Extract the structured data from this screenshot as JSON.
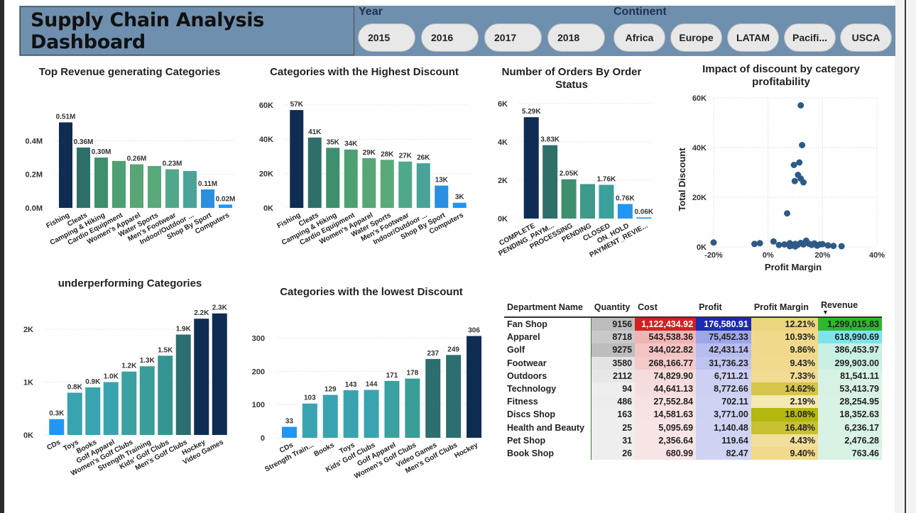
{
  "dashboard": {
    "title": "Supply Chain Analysis Dashboard"
  },
  "slicers": {
    "year_label": "Year",
    "years": [
      "2015",
      "2016",
      "2017",
      "2018"
    ],
    "continent_label": "Continent",
    "continents": [
      "Africa",
      "Europe",
      "LATAM",
      "Pacifi...",
      "USCA"
    ]
  },
  "chart_data": [
    {
      "id": "top_revenue",
      "type": "bar",
      "title": "Top Revenue generating Categories",
      "categories": [
        "Fishing",
        "Cleats",
        "Camping & Hiking",
        "Cardio Equipment",
        "Women's Apparel",
        "Water Sports",
        "Men's Footwear",
        "Indoor/Outdoor ...",
        "Shop By Sport",
        "Computers"
      ],
      "values": [
        0.51,
        0.36,
        0.3,
        0.28,
        0.26,
        0.25,
        0.23,
        0.22,
        0.11,
        0.02
      ],
      "labels": [
        "0.51M",
        "0.36M",
        "0.30M",
        "",
        "0.26M",
        "",
        "0.23M",
        "",
        "0.11M",
        "0.02M"
      ],
      "yticks": [
        "0.0M",
        "0.2M",
        "0.4M"
      ],
      "ytick_values": [
        0,
        0.2,
        0.4
      ],
      "ylim": [
        0,
        0.55
      ],
      "colors": [
        "#0f2d52",
        "#2f6f6a",
        "#3e8f6e",
        "#4ea072",
        "#58a576",
        "#5aa97a",
        "#50a88a",
        "#49a398",
        "#2a8fe0",
        "#2196f3"
      ]
    },
    {
      "id": "highest_discount",
      "type": "bar",
      "title": "Categories with the Highest Discount",
      "categories": [
        "Fishing",
        "Cleats",
        "Camping & Hiking",
        "Cardio Equipment",
        "Women's Apparel",
        "Water Sports",
        "Men's Footwear",
        "Indoor/Outdoor ...",
        "Shop By Sport",
        "Computers"
      ],
      "values": [
        57,
        41,
        35,
        34,
        29,
        28,
        27,
        26,
        13,
        3
      ],
      "labels": [
        "57K",
        "41K",
        "35K",
        "34K",
        "29K",
        "28K",
        "27K",
        "26K",
        "13K",
        "3K"
      ],
      "yticks": [
        "0K",
        "20K",
        "40K",
        "60K"
      ],
      "ytick_values": [
        0,
        20,
        40,
        60
      ],
      "ylim": [
        0,
        62
      ],
      "colors": [
        "#0f2d52",
        "#2f6f6a",
        "#3e8f6e",
        "#4ea072",
        "#58a576",
        "#5aa97a",
        "#50a88a",
        "#49a398",
        "#2a8fe0",
        "#2196f3"
      ]
    },
    {
      "id": "orders_by_status",
      "type": "bar",
      "title": "Number of Orders By Order Status",
      "categories": [
        "COMPLETE",
        "PENDING_PAYM...",
        "PROCESSING",
        "PENDING",
        "CLOSED",
        "ON_HOLD",
        "PAYMENT_REVIE..."
      ],
      "values": [
        5.29,
        3.83,
        2.05,
        1.8,
        1.76,
        0.76,
        0.06
      ],
      "labels": [
        "5.29K",
        "3.83K",
        "2.05K",
        "",
        "1.76K",
        "0.76K",
        "0.06K"
      ],
      "yticks": [
        "0K",
        "2K",
        "4K",
        "6K"
      ],
      "ytick_values": [
        0,
        2,
        4,
        6
      ],
      "ylim": [
        0,
        6
      ],
      "colors": [
        "#0f2d52",
        "#2f6f6a",
        "#3e8f6e",
        "#3f9a8a",
        "#3aa09a",
        "#2196f3",
        "#2196f3"
      ]
    },
    {
      "id": "underperforming",
      "type": "bar",
      "title": "underperforming Categories",
      "categories": [
        "CDs",
        "Toys",
        "Books",
        "Golf Apparel",
        "Women's Golf Clubs",
        "Strength Training",
        "Kids' Golf Clubs",
        "Men's Golf Clubs",
        "Hockey",
        "Video Games"
      ],
      "values": [
        0.3,
        0.8,
        0.9,
        1.0,
        1.2,
        1.3,
        1.5,
        1.9,
        2.2,
        2.3
      ],
      "labels": [
        "0.3K",
        "0.8K",
        "0.9K",
        "1.0K",
        "1.2K",
        "1.3K",
        "1.5K",
        "1.9K",
        "2.2K",
        "2.3K"
      ],
      "yticks": [
        "0K",
        "1K",
        "2K"
      ],
      "ytick_values": [
        0,
        1,
        2
      ],
      "ylim": [
        0,
        2.35
      ],
      "colors": [
        "#2196f3",
        "#3aa3b0",
        "#3aa3b0",
        "#3aa3b0",
        "#3aa0a0",
        "#3a9d98",
        "#359590",
        "#2d6e70",
        "#0f2d52",
        "#0f2d52"
      ]
    },
    {
      "id": "lowest_discount",
      "type": "bar",
      "title": "Categories with the lowest Discount",
      "categories": [
        "CDs",
        "Strength Train...",
        "Books",
        "Toys",
        "Kids' Golf Clubs",
        "Golf Apparel",
        "Women's Golf Clubs",
        "Video Games",
        "Men's Golf Clubs",
        "Hockey"
      ],
      "values": [
        33,
        103,
        129,
        143,
        144,
        171,
        178,
        237,
        249,
        306
      ],
      "labels": [
        "33",
        "103",
        "129",
        "143",
        "144",
        "171",
        "178",
        "237",
        "249",
        "306"
      ],
      "yticks": [
        "0",
        "100",
        "200",
        "300"
      ],
      "ytick_values": [
        0,
        100,
        200,
        300
      ],
      "ylim": [
        0,
        320
      ],
      "colors": [
        "#2196f3",
        "#3aa3b0",
        "#3aa3b0",
        "#3aa3b0",
        "#3aa3b0",
        "#3aa0a0",
        "#3a9d98",
        "#2d6e70",
        "#2d6e70",
        "#0f2d52"
      ]
    },
    {
      "id": "discount_vs_margin",
      "type": "scatter",
      "title": "Impact of discount by category profitability",
      "xlabel": "Profit Margin",
      "ylabel": "Total Discount",
      "xticks": [
        "-20%",
        "0%",
        "20%",
        "40%"
      ],
      "xtick_values": [
        -20,
        0,
        20,
        40
      ],
      "yticks": [
        "0K",
        "20K",
        "40K",
        "60K"
      ],
      "ytick_values": [
        0,
        20,
        40,
        60
      ],
      "xlim": [
        -20,
        40
      ],
      "ylim": [
        0,
        60
      ],
      "color": "#2e5a88",
      "points": [
        [
          12,
          57
        ],
        [
          12.5,
          41
        ],
        [
          11.5,
          34
        ],
        [
          9.5,
          33
        ],
        [
          11,
          29
        ],
        [
          12,
          27.5
        ],
        [
          9.8,
          26.5
        ],
        [
          13,
          26
        ],
        [
          7,
          13.5
        ],
        [
          -21,
          1.8
        ],
        [
          -5,
          1.2
        ],
        [
          -3,
          1.5
        ],
        [
          2,
          2.2
        ],
        [
          4,
          0.8
        ],
        [
          6,
          1.0
        ],
        [
          8,
          1.5
        ],
        [
          9,
          0.6
        ],
        [
          10,
          1.2
        ],
        [
          11,
          0.9
        ],
        [
          12,
          1.6
        ],
        [
          13,
          1.0
        ],
        [
          14,
          2.5
        ],
        [
          15,
          1.3
        ],
        [
          16,
          0.8
        ],
        [
          17,
          1.4
        ],
        [
          18,
          0.5
        ],
        [
          19,
          1.0
        ],
        [
          20,
          1.1
        ],
        [
          22,
          0.6
        ],
        [
          24,
          0.4
        ],
        [
          27,
          0.3
        ],
        [
          8,
          0.3
        ],
        [
          10,
          0.2
        ]
      ]
    }
  ],
  "table": {
    "columns": [
      "Department Name",
      "Quantity",
      "Cost",
      "Profit",
      "Profit Margin",
      "Revenue"
    ],
    "rows": [
      [
        "Fan Shop",
        "9156",
        "1,122,434.92",
        "176,580.91",
        "12.21%",
        "1,299,015.83"
      ],
      [
        "Apparel",
        "8718",
        "543,538.36",
        "75,452.33",
        "10.93%",
        "618,990.69"
      ],
      [
        "Golf",
        "9275",
        "344,022.82",
        "42,431.14",
        "9.86%",
        "386,453.97"
      ],
      [
        "Footwear",
        "3580",
        "268,166.77",
        "31,736.23",
        "9.43%",
        "299,903.00"
      ],
      [
        "Outdoors",
        "2112",
        "74,829.90",
        "6,711.21",
        "7.33%",
        "81,541.11"
      ],
      [
        "Technology",
        "94",
        "44,641.13",
        "8,772.66",
        "14.62%",
        "53,413.79"
      ],
      [
        "Fitness",
        "486",
        "27,552.84",
        "702.11",
        "2.19%",
        "28,254.95"
      ],
      [
        "Discs Shop",
        "163",
        "14,581.63",
        "3,771.00",
        "18.08%",
        "18,352.63"
      ],
      [
        "Health and Beauty",
        "25",
        "5,095.69",
        "1,140.48",
        "16.48%",
        "6,236.17"
      ],
      [
        "Pet Shop",
        "31",
        "2,356.64",
        "119.64",
        "4.43%",
        "2,476.28"
      ],
      [
        "Book Shop",
        "26",
        "680.99",
        "82.47",
        "9.40%",
        "763.46"
      ]
    ],
    "cell_colors": {
      "quantity": [
        "#bdbdbd",
        "#c9c9c9",
        "#bdbdbd",
        "#e3e3e3",
        "#e7e7e7",
        "#eeeeee",
        "#ededed",
        "#eeeeee",
        "#eeeeee",
        "#eeeeee",
        "#eeeeee"
      ],
      "cost": [
        "#d42020",
        "#f1b4b4",
        "#f3c4c4",
        "#f4caca",
        "#f6dcdc",
        "#f6dede",
        "#f7e1e1",
        "#f7e3e3",
        "#f7e4e4",
        "#f7e4e4",
        "#f7e4e4"
      ],
      "profit": [
        "#1c2bb0",
        "#9ea6e8",
        "#b7bdee",
        "#bec3ef",
        "#cdd0f2",
        "#ccd0f2",
        "#cfd3f3",
        "#ced2f3",
        "#d0d3f3",
        "#d0d4f3",
        "#d0d4f3"
      ],
      "margin": [
        "#ecd57e",
        "#f0d98a",
        "#f0d98c",
        "#f1da8e",
        "#f2dc93",
        "#d5c548",
        "#f5e9b4",
        "#b5b80e",
        "#c8c132",
        "#f3df9c",
        "#f1da8d"
      ],
      "revenue": [
        "#2eb82e",
        "#7fe3ea",
        "#c8f0e4",
        "#cbf0e3",
        "#d6f2e2",
        "#d7f2e2",
        "#d8f2e3",
        "#d8f2e3",
        "#d8f2e3",
        "#d8f2e3",
        "#d8f2e3"
      ]
    }
  }
}
